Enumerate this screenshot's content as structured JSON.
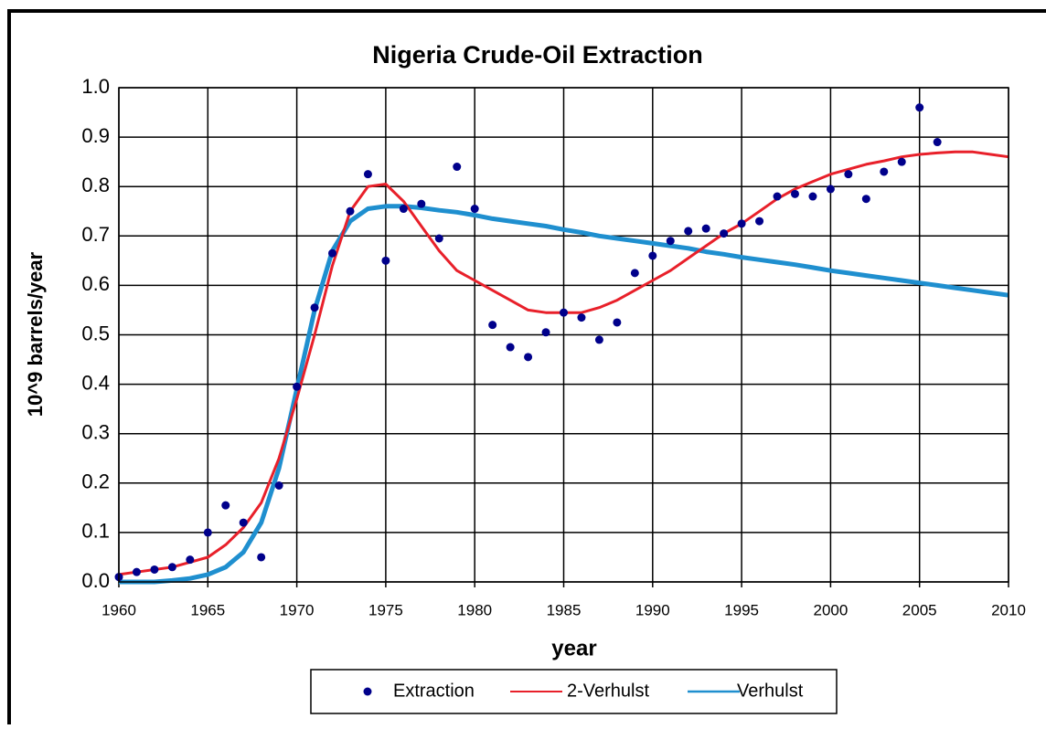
{
  "chart_data": {
    "type": "line",
    "title": "Nigeria Crude-Oil Extraction",
    "xlabel": "year",
    "ylabel": "10^9 barrels/year",
    "xlim": [
      1960,
      2010
    ],
    "xticks": [
      1960,
      1965,
      1970,
      1975,
      1980,
      1985,
      1990,
      1995,
      2000,
      2005,
      2010
    ],
    "ylim": [
      0,
      1
    ],
    "yticks": [
      {
        "value": 0,
        "label": "0.0"
      },
      0.1,
      0.2,
      0.3,
      0.4,
      0.5,
      0.6,
      0.7,
      0.8,
      0.9,
      {
        "value": 1,
        "label": "1.0"
      }
    ],
    "grid": true,
    "legend": "bottom",
    "series": [
      {
        "name": "Extraction",
        "type": "scatter",
        "color": "#00008b",
        "x": [
          1960,
          1961,
          1962,
          1963,
          1964,
          1965,
          1966,
          1967,
          1968,
          1969,
          1970,
          1971,
          1972,
          1973,
          1974,
          1975,
          1976,
          1977,
          1978,
          1979,
          1980,
          1981,
          1982,
          1983,
          1984,
          1985,
          1986,
          1987,
          1988,
          1989,
          1990,
          1991,
          1992,
          1993,
          1994,
          1995,
          1996,
          1997,
          1998,
          1999,
          2000,
          2001,
          2002,
          2003,
          2004,
          2005,
          2006
        ],
        "values": [
          0.01,
          0.02,
          0.025,
          0.03,
          0.045,
          0.1,
          0.155,
          0.12,
          0.05,
          0.195,
          0.395,
          0.555,
          0.665,
          0.75,
          0.825,
          0.65,
          0.755,
          0.765,
          0.695,
          0.84,
          0.755,
          0.52,
          0.475,
          0.455,
          0.505,
          0.545,
          0.535,
          0.49,
          0.525,
          0.625,
          0.66,
          0.69,
          0.71,
          0.715,
          0.705,
          0.725,
          0.73,
          0.78,
          0.785,
          0.78,
          0.795,
          0.825,
          0.775,
          0.83,
          0.85,
          0.96,
          0.89
        ]
      },
      {
        "name": "2-Verhulst",
        "type": "line",
        "color": "#e8202a",
        "x": [
          1960,
          1961,
          1962,
          1963,
          1964,
          1965,
          1966,
          1967,
          1968,
          1969,
          1970,
          1971,
          1972,
          1973,
          1974,
          1975,
          1976,
          1977,
          1978,
          1979,
          1980,
          1981,
          1982,
          1983,
          1984,
          1985,
          1986,
          1987,
          1988,
          1989,
          1990,
          1991,
          1992,
          1993,
          1994,
          1995,
          1996,
          1997,
          1998,
          1999,
          2000,
          2001,
          2002,
          2003,
          2004,
          2005,
          2006,
          2007,
          2008,
          2009,
          2010
        ],
        "values": [
          0.015,
          0.02,
          0.025,
          0.03,
          0.04,
          0.05,
          0.075,
          0.11,
          0.16,
          0.25,
          0.37,
          0.5,
          0.64,
          0.75,
          0.8,
          0.805,
          0.77,
          0.72,
          0.67,
          0.63,
          0.61,
          0.59,
          0.57,
          0.55,
          0.545,
          0.545,
          0.545,
          0.555,
          0.57,
          0.59,
          0.61,
          0.63,
          0.655,
          0.68,
          0.705,
          0.725,
          0.75,
          0.775,
          0.795,
          0.81,
          0.825,
          0.835,
          0.845,
          0.852,
          0.86,
          0.865,
          0.868,
          0.87,
          0.87,
          0.865,
          0.86
        ]
      },
      {
        "name": "Verhulst",
        "type": "line",
        "color": "#1f8fcf",
        "x": [
          1960,
          1961,
          1962,
          1963,
          1964,
          1965,
          1966,
          1967,
          1968,
          1969,
          1970,
          1971,
          1972,
          1973,
          1974,
          1975,
          1976,
          1977,
          1978,
          1979,
          1980,
          1981,
          1982,
          1983,
          1984,
          1985,
          1986,
          1987,
          1988,
          1989,
          1990,
          1991,
          1992,
          1993,
          1994,
          1995,
          1996,
          1997,
          1998,
          1999,
          2000,
          2001,
          2002,
          2003,
          2004,
          2005,
          2006,
          2007,
          2008,
          2009,
          2010
        ],
        "values": [
          0,
          0,
          0,
          0.003,
          0.007,
          0.015,
          0.03,
          0.06,
          0.12,
          0.23,
          0.39,
          0.55,
          0.67,
          0.73,
          0.755,
          0.76,
          0.76,
          0.757,
          0.752,
          0.748,
          0.742,
          0.735,
          0.73,
          0.725,
          0.72,
          0.713,
          0.707,
          0.7,
          0.695,
          0.69,
          0.685,
          0.68,
          0.675,
          0.668,
          0.663,
          0.657,
          0.652,
          0.647,
          0.642,
          0.636,
          0.63,
          0.625,
          0.62,
          0.615,
          0.61,
          0.605,
          0.6,
          0.595,
          0.59,
          0.585,
          0.58
        ]
      }
    ]
  }
}
